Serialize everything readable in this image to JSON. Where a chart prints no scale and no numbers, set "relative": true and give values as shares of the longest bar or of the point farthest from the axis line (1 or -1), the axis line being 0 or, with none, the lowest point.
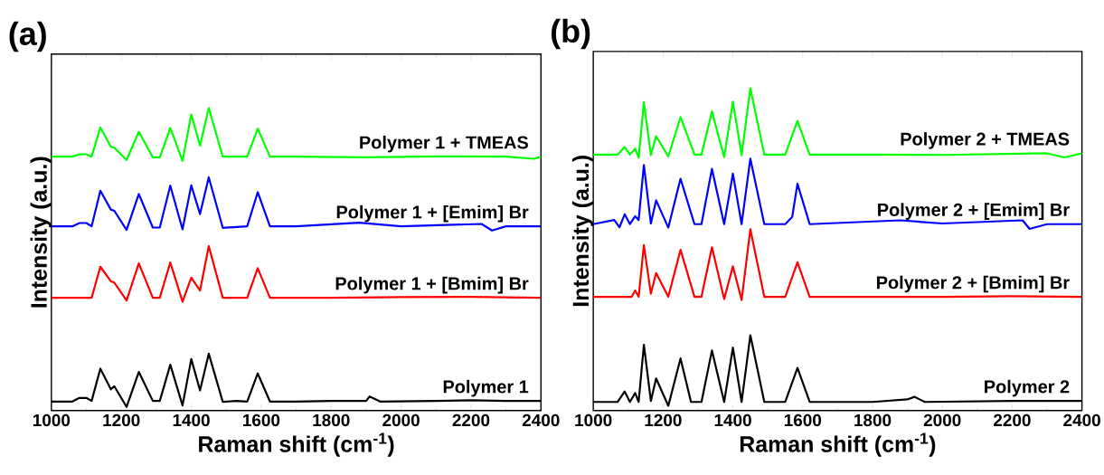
{
  "chart_data": [
    {
      "type": "line",
      "relative": true,
      "xlabel": "Raman shift (cm$^{-1}$)",
      "ylabel": "Intensity (a.u.)",
      "annotations": [
        "(a)"
      ],
      "xlim": [
        1000,
        2400
      ],
      "xticks": [
        1000,
        1200,
        1400,
        1600,
        1800,
        2000,
        2200,
        2400
      ],
      "legend": false,
      "series": [
        {
          "name": "Polymer 1",
          "color": "#000000",
          "x": [
            1000,
            1060,
            1080,
            1100,
            1115,
            1140,
            1170,
            1180,
            1215,
            1250,
            1290,
            1310,
            1340,
            1375,
            1400,
            1425,
            1450,
            1490,
            1530,
            1560,
            1590,
            1625,
            1700,
            1800,
            1900,
            1910,
            1940,
            2100,
            2200,
            2300,
            2400
          ],
          "values": [
            0.018,
            0.018,
            0.03,
            0.03,
            0.02,
            0.128,
            0.059,
            0.069,
            0.0,
            0.117,
            0.02,
            0.02,
            0.141,
            0.005,
            0.16,
            0.055,
            0.178,
            0.017,
            0.02,
            0.018,
            0.112,
            0.018,
            0.018,
            0.02,
            0.02,
            0.035,
            0.018,
            0.02,
            0.022,
            0.02,
            0.02
          ]
        },
        {
          "name": "Polymer 1 + [Bmim] Br",
          "color": "#ff0000",
          "x": [
            1000,
            1100,
            1115,
            1140,
            1170,
            1180,
            1215,
            1250,
            1290,
            1310,
            1340,
            1375,
            1400,
            1425,
            1450,
            1490,
            1560,
            1590,
            1625,
            1800,
            2000,
            2200,
            2400
          ],
          "values": [
            0.365,
            0.365,
            0.365,
            0.469,
            0.42,
            0.416,
            0.356,
            0.48,
            0.365,
            0.365,
            0.483,
            0.352,
            0.432,
            0.389,
            0.538,
            0.365,
            0.365,
            0.464,
            0.365,
            0.365,
            0.367,
            0.368,
            0.365
          ]
        },
        {
          "name": "Polymer 1 + [Emim] Br",
          "color": "#0000ff",
          "x": [
            1000,
            1060,
            1080,
            1100,
            1115,
            1140,
            1170,
            1180,
            1215,
            1250,
            1290,
            1310,
            1340,
            1375,
            1400,
            1425,
            1450,
            1490,
            1560,
            1590,
            1625,
            1700,
            1880,
            2000,
            2230,
            2260,
            2300,
            2400
          ],
          "values": [
            0.604,
            0.604,
            0.615,
            0.615,
            0.604,
            0.723,
            0.66,
            0.656,
            0.592,
            0.712,
            0.6,
            0.6,
            0.74,
            0.594,
            0.741,
            0.645,
            0.768,
            0.599,
            0.604,
            0.718,
            0.604,
            0.604,
            0.616,
            0.604,
            0.612,
            0.59,
            0.604,
            0.604
          ]
        },
        {
          "name": "Polymer 1 + TMEAS",
          "color": "#00ff00",
          "x": [
            1000,
            1060,
            1080,
            1100,
            1115,
            1140,
            1170,
            1180,
            1215,
            1250,
            1290,
            1310,
            1340,
            1375,
            1400,
            1425,
            1450,
            1490,
            1560,
            1590,
            1625,
            1700,
            1900,
            2100,
            2300,
            2380,
            2400
          ],
          "values": [
            0.837,
            0.837,
            0.845,
            0.845,
            0.837,
            0.935,
            0.87,
            0.867,
            0.826,
            0.92,
            0.835,
            0.835,
            0.933,
            0.823,
            0.978,
            0.874,
            1.0,
            0.837,
            0.837,
            0.931,
            0.837,
            0.837,
            0.835,
            0.838,
            0.837,
            0.83,
            0.837
          ]
        }
      ]
    },
    {
      "type": "line",
      "relative": true,
      "xlabel": "Raman shift (cm$^{-1}$)",
      "ylabel": "Intensity (a.u.)",
      "annotations": [
        "(b)"
      ],
      "xlim": [
        1000,
        2400
      ],
      "xticks": [
        1000,
        1200,
        1400,
        1600,
        1800,
        2000,
        2200,
        2400
      ],
      "legend": false,
      "series": [
        {
          "name": "Polymer 2",
          "color": "#000000",
          "x": [
            1000,
            1070,
            1090,
            1105,
            1120,
            1130,
            1145,
            1165,
            1180,
            1215,
            1250,
            1280,
            1310,
            1340,
            1375,
            1400,
            1425,
            1450,
            1490,
            1550,
            1585,
            1620,
            1800,
            1900,
            1920,
            1950,
            2200,
            2400
          ],
          "values": [
            0.012,
            0.012,
            0.045,
            0.012,
            0.04,
            0.012,
            0.192,
            0.015,
            0.086,
            0.0,
            0.149,
            0.012,
            0.012,
            0.174,
            0.012,
            0.183,
            0.012,
            0.222,
            0.012,
            0.012,
            0.119,
            0.012,
            0.012,
            0.02,
            0.028,
            0.012,
            0.015,
            0.015
          ]
        },
        {
          "name": "Polymer 2 + [Bmim] Br",
          "color": "#ff0000",
          "x": [
            1000,
            1090,
            1110,
            1120,
            1130,
            1145,
            1165,
            1180,
            1215,
            1250,
            1290,
            1310,
            1340,
            1375,
            1400,
            1425,
            1450,
            1490,
            1550,
            1585,
            1620,
            1800,
            2000,
            2200,
            2400
          ],
          "values": [
            0.343,
            0.343,
            0.343,
            0.363,
            0.343,
            0.506,
            0.353,
            0.418,
            0.343,
            0.491,
            0.343,
            0.343,
            0.499,
            0.336,
            0.439,
            0.333,
            0.556,
            0.343,
            0.343,
            0.452,
            0.343,
            0.343,
            0.343,
            0.345,
            0.343
          ]
        },
        {
          "name": "Polymer 2 + [Emim] Br",
          "color": "#0000ff",
          "x": [
            1000,
            1060,
            1075,
            1090,
            1105,
            1120,
            1130,
            1145,
            1165,
            1180,
            1215,
            1250,
            1290,
            1310,
            1340,
            1375,
            1400,
            1425,
            1450,
            1490,
            1550,
            1570,
            1585,
            1620,
            1880,
            2000,
            2230,
            2250,
            2300,
            2400
          ],
          "values": [
            0.572,
            0.585,
            0.562,
            0.603,
            0.572,
            0.597,
            0.585,
            0.758,
            0.574,
            0.647,
            0.561,
            0.715,
            0.572,
            0.572,
            0.746,
            0.572,
            0.731,
            0.572,
            0.778,
            0.572,
            0.572,
            0.595,
            0.699,
            0.572,
            0.584,
            0.574,
            0.584,
            0.557,
            0.572,
            0.572
          ]
        },
        {
          "name": "Polymer 2 + TMEAS",
          "color": "#00ff00",
          "x": [
            1000,
            1070,
            1090,
            1105,
            1120,
            1130,
            1145,
            1165,
            1180,
            1215,
            1250,
            1290,
            1310,
            1340,
            1375,
            1400,
            1425,
            1450,
            1490,
            1550,
            1585,
            1620,
            1800,
            2000,
            2300,
            2350,
            2400
          ],
          "values": [
            0.791,
            0.791,
            0.815,
            0.791,
            0.81,
            0.781,
            0.956,
            0.789,
            0.849,
            0.785,
            0.909,
            0.791,
            0.791,
            0.927,
            0.783,
            0.958,
            0.789,
            1.0,
            0.791,
            0.791,
            0.897,
            0.791,
            0.791,
            0.79,
            0.795,
            0.782,
            0.795
          ]
        }
      ]
    }
  ]
}
